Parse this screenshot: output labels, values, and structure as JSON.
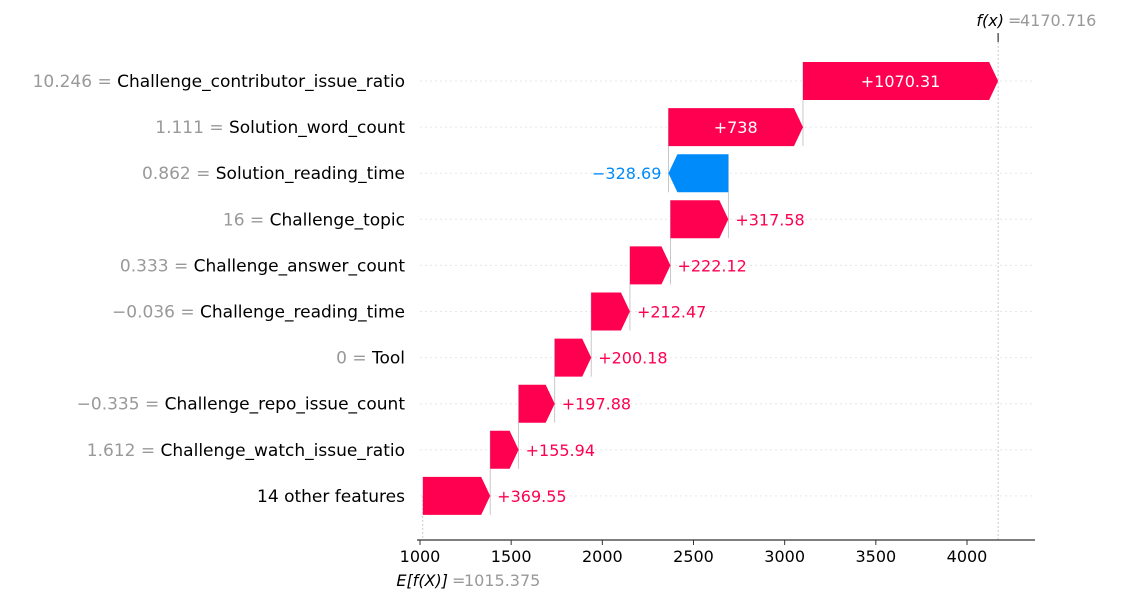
{
  "chart_data": {
    "type": "waterfall",
    "fx": {
      "label": "f(x)",
      "value": "4170.716"
    },
    "expected": {
      "label": "E[f(X)]",
      "value": "1015.375"
    },
    "base_value": 1015.375,
    "final_value": 4170.716,
    "xlim": [
      1000,
      4370
    ],
    "xticks": [
      "1000",
      "1500",
      "2000",
      "2500",
      "3000",
      "3500",
      "4000"
    ],
    "features": [
      {
        "value": "10.246",
        "name": "Challenge_contributor_issue_ratio",
        "contribution": 1070.31,
        "label": "+1070.31"
      },
      {
        "value": "1.111",
        "name": "Solution_word_count",
        "contribution": 738,
        "label": "+738"
      },
      {
        "value": "0.862",
        "name": "Solution_reading_time",
        "contribution": -328.69,
        "label": "−328.69"
      },
      {
        "value": "16",
        "name": "Challenge_topic",
        "contribution": 317.58,
        "label": "+317.58"
      },
      {
        "value": "0.333",
        "name": "Challenge_answer_count",
        "contribution": 222.12,
        "label": "+222.12"
      },
      {
        "value": "−0.036",
        "name": "Challenge_reading_time",
        "contribution": 212.47,
        "label": "+212.47"
      },
      {
        "value": "0",
        "name": "Tool",
        "contribution": 200.18,
        "label": "+200.18"
      },
      {
        "value": "−0.335",
        "name": "Challenge_repo_issue_count",
        "contribution": 197.88,
        "label": "+197.88"
      },
      {
        "value": "1.612",
        "name": "Challenge_watch_issue_ratio",
        "contribution": 155.94,
        "label": "+155.94"
      },
      {
        "value": "",
        "name": "14 other features",
        "contribution": 369.55,
        "label": "+369.55"
      }
    ],
    "colors": {
      "positive": "#ff0051",
      "negative": "#008bfb",
      "muted": "#999999"
    }
  }
}
